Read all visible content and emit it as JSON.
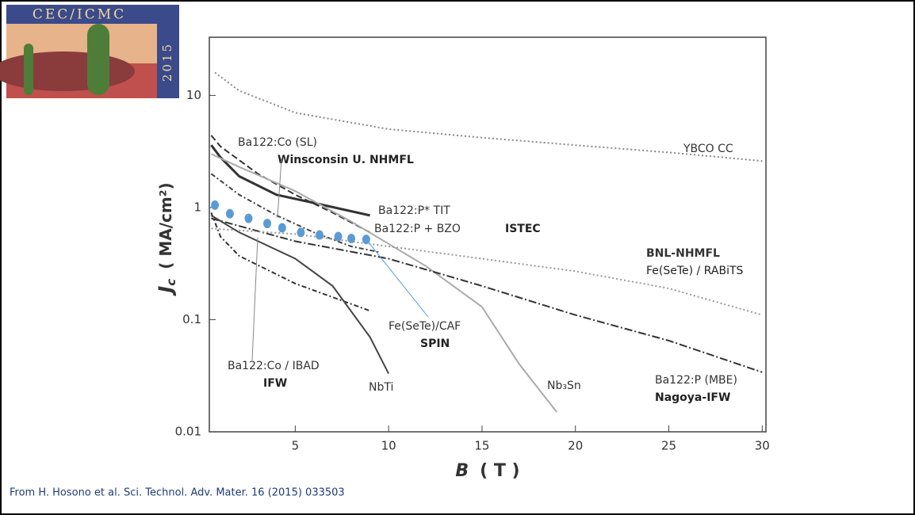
{
  "logo": {
    "title": "CEC/ICMC",
    "year": "2015"
  },
  "citation": "From H. Hosono et al. Sci. Technol. Adv. Mater. 16 (2015) 033503",
  "chart_data": {
    "type": "line",
    "y_scale": "log",
    "x_label": {
      "symbol": "B",
      "unit": "( T )"
    },
    "y_label": {
      "symbol": "J",
      "sub": "c",
      "unit": "( MA/cm²)"
    },
    "xlim": [
      0.4,
      30.2
    ],
    "ylim": [
      0.01,
      33
    ],
    "xticks": [
      5,
      10,
      15,
      20,
      25,
      30
    ],
    "yticks": [
      0.01,
      0.1,
      1,
      10
    ],
    "series": [
      {
        "name": "YBCO CC",
        "color": "#888888",
        "dash": "2 3",
        "x": [
          0.7,
          2,
          5,
          10,
          15,
          20,
          25,
          30
        ],
        "values": [
          16,
          11,
          7,
          5,
          4.2,
          3.6,
          3.1,
          2.6
        ]
      },
      {
        "name": "Ba122:P* TIT",
        "color": "#333333",
        "dash": "",
        "x": [
          0.5,
          1,
          2,
          4,
          6,
          9
        ],
        "values": [
          3.6,
          2.8,
          1.9,
          1.3,
          1.1,
          0.85
        ]
      },
      {
        "name": "Ba122:P + BZO",
        "group": "ISTEC",
        "color": "#333333",
        "dash": "8 4",
        "x": [
          0.5,
          1,
          3,
          5,
          7,
          9
        ],
        "values": [
          4.4,
          3.5,
          2.0,
          1.3,
          0.9,
          0.6
        ]
      },
      {
        "name": "Ba122:Co (SL)",
        "group": "Winsconsin U. NHMFL",
        "color": "#444444",
        "dash": "6 3 2 3",
        "x": [
          0.5,
          2,
          4,
          6,
          8,
          9.5
        ],
        "values": [
          2.0,
          1.3,
          0.85,
          0.6,
          0.45,
          0.4
        ]
      },
      {
        "name": "Nb₃Sn",
        "color": "#aaaaaa",
        "dash": "",
        "x": [
          0.5,
          2,
          5,
          8,
          12,
          15,
          17,
          19
        ],
        "values": [
          3.0,
          2.3,
          1.4,
          0.75,
          0.3,
          0.13,
          0.04,
          0.015
        ]
      },
      {
        "name": "Ba122:P (MBE)",
        "group": "Nagoya-IFW",
        "color": "#333333",
        "dash": "10 3 2 3",
        "x": [
          0.5,
          5,
          10,
          15,
          20,
          25,
          30
        ],
        "values": [
          0.8,
          0.5,
          0.35,
          0.2,
          0.11,
          0.065,
          0.034
        ]
      },
      {
        "name": "Fe(SeTe) / RABiTS",
        "group": "BNL-NHMFL",
        "color": "#999999",
        "dash": "2 3",
        "x": [
          0.5,
          5,
          10,
          15,
          20,
          25,
          30
        ],
        "values": [
          0.65,
          0.58,
          0.45,
          0.35,
          0.27,
          0.19,
          0.11
        ]
      },
      {
        "name": "Ba122:Co / IBAD",
        "group": "IFW",
        "color": "#333333",
        "dash": "6 3 2 3",
        "x": [
          0.5,
          1,
          2,
          5,
          9
        ],
        "values": [
          0.9,
          0.55,
          0.37,
          0.21,
          0.12
        ]
      },
      {
        "name": "NbTi",
        "color": "#444444",
        "dash": "",
        "x": [
          0.5,
          2,
          5,
          7,
          9,
          10
        ],
        "values": [
          0.85,
          0.6,
          0.35,
          0.2,
          0.07,
          0.033
        ]
      },
      {
        "name": "Fe(SeTe)/CAF",
        "group": "SPIN",
        "style": "dots",
        "color": "#5b9bd5",
        "x": [
          0.7,
          1.5,
          2.5,
          3.5,
          4.3,
          5.3,
          6.3,
          7.3,
          8.0,
          8.8
        ],
        "values": [
          1.05,
          0.88,
          0.8,
          0.72,
          0.66,
          0.6,
          0.57,
          0.55,
          0.53,
          0.52
        ]
      }
    ]
  }
}
